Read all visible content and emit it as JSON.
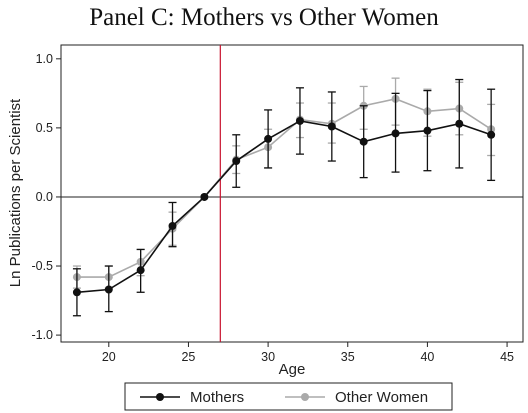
{
  "chart_data": {
    "type": "line",
    "title": "Panel C: Mothers vs Other Women",
    "xlabel": "Age",
    "ylabel": "Ln Publications per Scientist",
    "xlim": [
      17,
      46
    ],
    "ylim": [
      -1.05,
      1.1
    ],
    "xticks": [
      20,
      25,
      30,
      35,
      40,
      45
    ],
    "yticks": [
      -1.0,
      -0.5,
      0.0,
      0.5,
      1.0
    ],
    "ytick_labels": [
      "-1.0",
      "-0.5",
      "0.0",
      "0.5",
      "1.0"
    ],
    "reference_vline_x": 27,
    "reference_hline_y": 0,
    "grid": false,
    "legend_position": "bottom",
    "series": [
      {
        "name": "Mothers",
        "color": "#111111",
        "x": [
          18,
          20,
          22,
          24,
          26,
          28,
          30,
          32,
          34,
          36,
          38,
          40,
          42,
          44
        ],
        "y": [
          -0.69,
          -0.67,
          -0.53,
          -0.21,
          0.0,
          0.26,
          0.42,
          0.55,
          0.51,
          0.4,
          0.46,
          0.48,
          0.53,
          0.45
        ],
        "lower": [
          -0.86,
          -0.83,
          -0.69,
          -0.36,
          0.0,
          0.07,
          0.21,
          0.31,
          0.26,
          0.14,
          0.18,
          0.19,
          0.21,
          0.12
        ],
        "upper": [
          -0.52,
          -0.5,
          -0.38,
          -0.04,
          0.0,
          0.45,
          0.63,
          0.79,
          0.76,
          0.66,
          0.75,
          0.77,
          0.85,
          0.78
        ]
      },
      {
        "name": "Other Women",
        "color": "#aaaaaa",
        "x": [
          18,
          20,
          22,
          24,
          26,
          28,
          30,
          32,
          34,
          36,
          38,
          40,
          42,
          44
        ],
        "y": [
          -0.58,
          -0.58,
          -0.47,
          -0.23,
          0.0,
          0.27,
          0.36,
          0.56,
          0.53,
          0.66,
          0.71,
          0.62,
          0.64,
          0.49
        ],
        "lower": [
          -0.66,
          -0.66,
          -0.57,
          -0.35,
          0.0,
          0.17,
          0.21,
          0.43,
          0.39,
          0.49,
          0.52,
          0.44,
          0.45,
          0.3
        ],
        "upper": [
          -0.5,
          -0.5,
          -0.38,
          -0.11,
          0.0,
          0.37,
          0.49,
          0.68,
          0.68,
          0.8,
          0.86,
          0.78,
          0.83,
          0.67
        ]
      }
    ]
  }
}
